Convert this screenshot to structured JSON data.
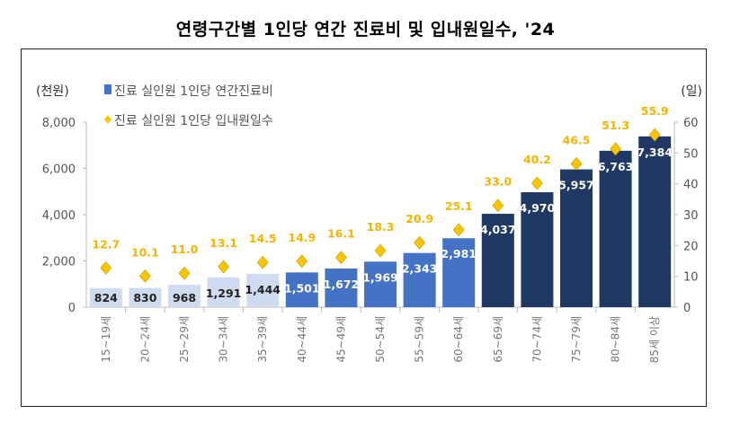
{
  "chart_data": {
    "type": "bar",
    "title": "연령구간별 1인당 연간 진료비 및 입내원일수, '24",
    "categories": [
      "15~19세",
      "20~24세",
      "25~29세",
      "30~34세",
      "35~39세",
      "40~44세",
      "45~49세",
      "50~54세",
      "55~59세",
      "60~64세",
      "65~69세",
      "70~74세",
      "75~79세",
      "80~84세",
      "85세 이상"
    ],
    "series": [
      {
        "name": "진료 실인원 1인당 연간진료비",
        "type": "bar",
        "axis": "left",
        "values": [
          824,
          830,
          968,
          1291,
          1444,
          1501,
          1672,
          1969,
          2343,
          2981,
          4037,
          4970,
          5957,
          6763,
          7384
        ],
        "labels": [
          "824",
          "830",
          "968",
          "1,291",
          "1,444",
          "1,501",
          "1,672",
          "1,969",
          "2,343",
          "2,981",
          "4,037",
          "4,970",
          "5,957",
          "6,763",
          "7,384"
        ]
      },
      {
        "name": "진료 실인원 1인당 입내원일수",
        "type": "scatter",
        "marker": "diamond",
        "axis": "right",
        "values": [
          12.7,
          10.1,
          11.0,
          13.1,
          14.5,
          14.9,
          16.1,
          18.3,
          20.9,
          25.1,
          33.0,
          40.2,
          46.5,
          51.3,
          55.9
        ],
        "labels": [
          "12.7",
          "10.1",
          "11.0",
          "13.1",
          "14.5",
          "14.9",
          "16.1",
          "18.3",
          "20.9",
          "25.1",
          "33.0",
          "40.2",
          "46.5",
          "51.3",
          "55.9"
        ]
      }
    ],
    "ylabel_left": "(천원)",
    "ylabel_right": "(일)",
    "ylim_left": [
      0,
      8000
    ],
    "ylim_right": [
      0,
      60
    ],
    "yticks_left": [
      "0",
      "2,000",
      "4,000",
      "6,000",
      "8,000"
    ],
    "yticks_right": [
      "0",
      "10",
      "20",
      "30",
      "40",
      "50",
      "60"
    ],
    "grid": false,
    "legend": "top-left",
    "colors": {
      "bar_light": "#cfdbef",
      "bar_mid": "#4472c4",
      "bar_dark": "#1f3864",
      "diamond": "#f7c600",
      "diamond_label": "#f5b400"
    }
  }
}
